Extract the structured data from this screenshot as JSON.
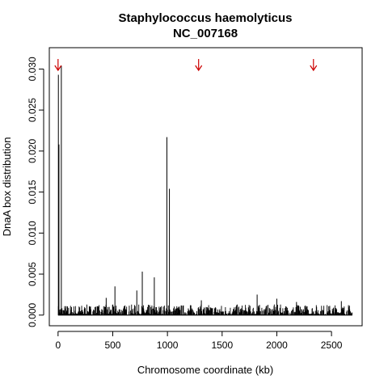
{
  "chart_data": {
    "type": "bar",
    "title": "Staphylococcus haemolyticus",
    "subtitle": "NC_007168",
    "xlabel": "Chromosome coordinate (kb)",
    "ylabel": "DnaA box distribution",
    "xlim": [
      -80,
      2780
    ],
    "ylim": [
      -0.0013,
      0.0326
    ],
    "xticks": [
      0,
      500,
      1000,
      1500,
      2000,
      2500
    ],
    "xtick_labels": [
      "0",
      "500",
      "1000",
      "1500",
      "2000",
      "2500"
    ],
    "yticks": [
      0.0,
      0.005,
      0.01,
      0.015,
      0.02,
      0.025,
      0.03
    ],
    "ytick_labels": [
      "0.000",
      "0.005",
      "0.010",
      "0.015",
      "0.020",
      "0.025",
      "0.030"
    ],
    "grid": false,
    "legend": "none",
    "bar_color": "#000000",
    "marker_color": "#cc0000",
    "peaks": [
      {
        "x": 3,
        "y": 0.0293
      },
      {
        "x": 8,
        "y": 0.0208
      },
      {
        "x": 30,
        "y": 0.0304
      },
      {
        "x": 995,
        "y": 0.0217
      },
      {
        "x": 1018,
        "y": 0.0154
      },
      {
        "x": 770,
        "y": 0.0053
      },
      {
        "x": 880,
        "y": 0.0046
      },
      {
        "x": 520,
        "y": 0.0035
      },
      {
        "x": 720,
        "y": 0.003
      },
      {
        "x": 440,
        "y": 0.0021
      },
      {
        "x": 1820,
        "y": 0.0025
      },
      {
        "x": 2590,
        "y": 0.0017
      },
      {
        "x": 1310,
        "y": 0.0018
      },
      {
        "x": 2000,
        "y": 0.002
      },
      {
        "x": 2180,
        "y": 0.0016
      }
    ],
    "baseline_range": [
      0,
      2690
    ],
    "baseline_max": 0.0013,
    "arrows": [
      {
        "x": 0
      },
      {
        "x": 1285
      },
      {
        "x": 2335
      }
    ]
  }
}
